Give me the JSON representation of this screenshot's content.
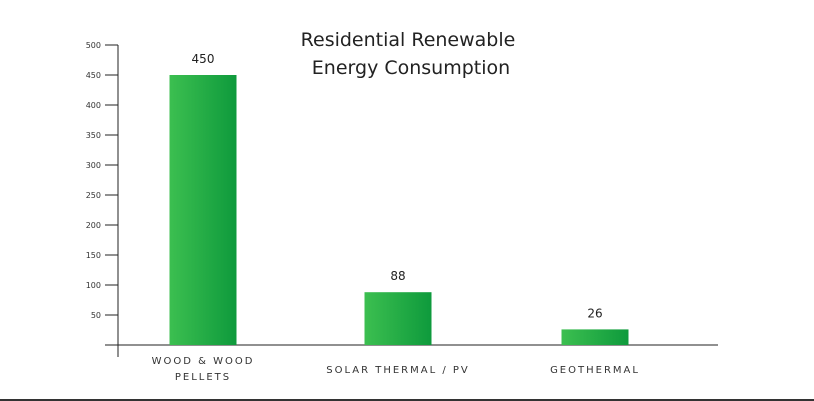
{
  "chart_data": {
    "type": "bar",
    "title_lines": [
      "Residential Renewable",
      "Energy Consumption"
    ],
    "xlabel": "",
    "ylabel": "",
    "categories": [
      [
        "WOOD & WOOD",
        "PELLETS"
      ],
      [
        "SOLAR THERMAL / PV"
      ],
      [
        "GEOTHERMAL"
      ]
    ],
    "values": [
      450,
      88,
      26
    ],
    "value_labels": [
      "450",
      "88",
      "26"
    ],
    "ylim": [
      0,
      500
    ],
    "yticks": [
      50,
      100,
      150,
      200,
      250,
      300,
      350,
      400,
      450,
      500
    ],
    "grid": false,
    "legend": "none",
    "colors": {
      "bar_light": "#3cbf50",
      "bar_dark": "#0e9a3c",
      "axis": "#222222"
    }
  }
}
